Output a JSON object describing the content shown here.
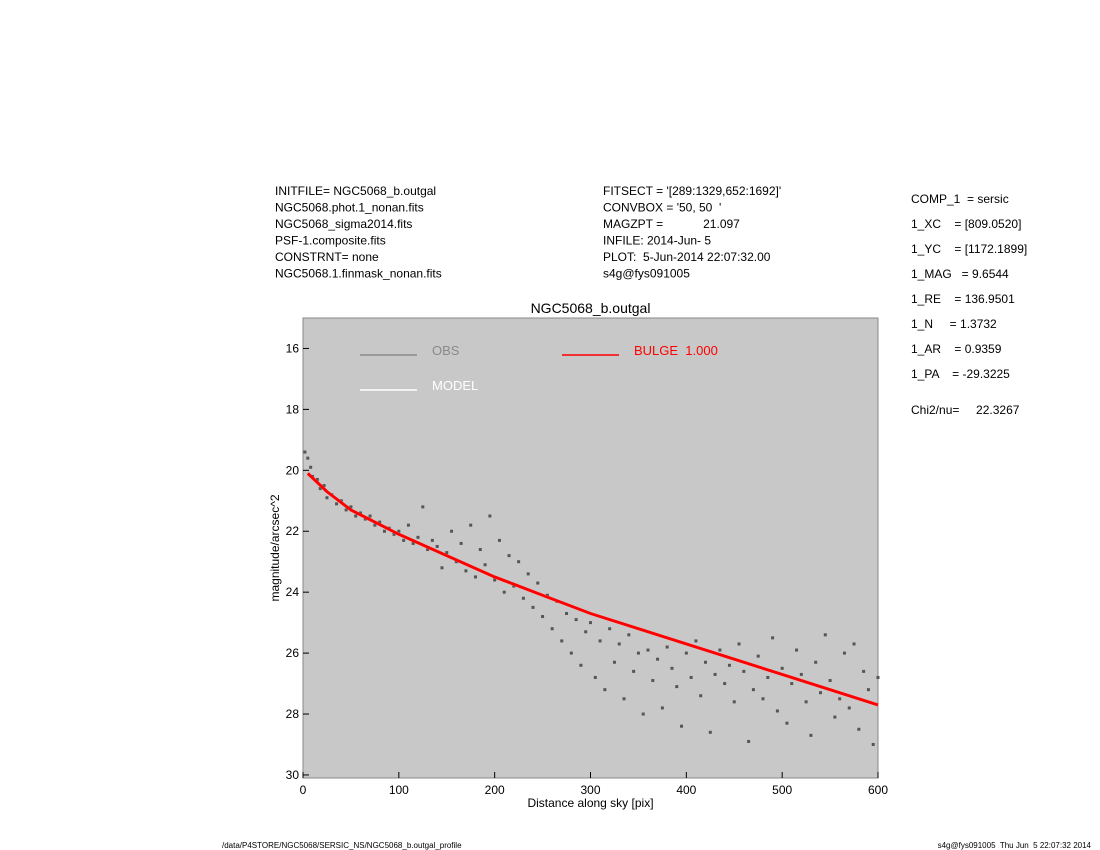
{
  "header_left": [
    "INITFILE= NGC5068_b.outgal",
    "NGC5068.phot.1_nonan.fits",
    "NGC5068_sigma2014.fits",
    "PSF-1.composite.fits",
    "CONSTRNT= none",
    "NGC5068.1.finmask_nonan.fits"
  ],
  "header_middle": [
    "FITSECT = '[289:1329,652:1692]'",
    "CONVBOX = '50, 50  '",
    "MAGZPT =            21.097",
    "INFILE: 2014-Jun- 5",
    "PLOT:  5-Jun-2014 22:07:32.00",
    "s4g@fys091005"
  ],
  "header_right": [
    "COMP_1  = sersic",
    "1_XC    = [809.0520]",
    "1_YC    = [1172.1899]",
    "1_MAG   = 9.6544",
    "1_RE    = 136.9501",
    "1_N     = 1.3732",
    "1_AR    = 0.9359",
    "1_PA    = -29.3225",
    "Chi2/nu=     22.3267"
  ],
  "footer_left": "/data/P4STORE/NGC5068/SERSIC_NS/NGC5068_b.outgal_profile",
  "footer_right": "s4g@fys091005  Thu Jun  5 22:07:32 2014",
  "chart_data": {
    "type": "scatter",
    "title": "NGC5068_b.outgal",
    "x_label": "Distance along sky [pix]",
    "y_label": "magnitude/arcsec^2",
    "xlim": [
      0,
      600
    ],
    "ylim": [
      15,
      30.1
    ],
    "y_inverted": true,
    "xticks": [
      0,
      100,
      200,
      300,
      400,
      500,
      600
    ],
    "yticks": [
      16,
      18,
      20,
      22,
      24,
      26,
      28,
      30
    ],
    "background": "#c8c8c8",
    "series": [
      {
        "name": "OBS",
        "color": "#555555",
        "legend_color": "#8a8a8a",
        "mode": "points",
        "x": [
          2,
          5,
          8,
          10,
          15,
          18,
          22,
          25,
          30,
          35,
          40,
          45,
          50,
          55,
          60,
          65,
          70,
          75,
          80,
          85,
          90,
          95,
          100,
          105,
          110,
          115,
          120,
          125,
          130,
          135,
          140,
          145,
          150,
          155,
          160,
          165,
          170,
          175,
          180,
          185,
          190,
          195,
          200,
          205,
          210,
          215,
          220,
          225,
          230,
          235,
          240,
          245,
          250,
          255,
          260,
          265,
          270,
          275,
          280,
          285,
          290,
          295,
          300,
          305,
          310,
          315,
          320,
          325,
          330,
          335,
          340,
          345,
          350,
          355,
          360,
          365,
          370,
          375,
          380,
          385,
          390,
          395,
          400,
          405,
          410,
          415,
          420,
          425,
          430,
          435,
          440,
          445,
          450,
          455,
          460,
          465,
          470,
          475,
          480,
          485,
          490,
          495,
          500,
          505,
          510,
          515,
          520,
          525,
          530,
          535,
          540,
          545,
          550,
          555,
          560,
          565,
          570,
          575,
          580,
          585,
          590,
          595,
          600
        ],
        "values": [
          19.4,
          19.6,
          19.9,
          20.2,
          20.3,
          20.6,
          20.5,
          20.9,
          20.8,
          21.1,
          21.0,
          21.3,
          21.2,
          21.5,
          21.4,
          21.6,
          21.5,
          21.8,
          21.7,
          22.0,
          21.9,
          22.1,
          22.0,
          22.3,
          21.8,
          22.4,
          22.2,
          21.2,
          22.6,
          22.3,
          22.5,
          23.2,
          22.7,
          22.0,
          23.0,
          22.4,
          23.3,
          21.8,
          23.5,
          22.6,
          23.1,
          21.5,
          23.6,
          22.3,
          24.0,
          22.8,
          23.8,
          23.0,
          24.2,
          23.4,
          24.5,
          23.7,
          24.8,
          24.1,
          25.2,
          24.3,
          25.6,
          24.7,
          26.0,
          24.9,
          26.4,
          25.3,
          25.0,
          26.8,
          25.6,
          27.2,
          25.2,
          26.3,
          25.7,
          27.5,
          25.4,
          26.6,
          26.0,
          28.0,
          25.9,
          26.9,
          26.2,
          27.8,
          25.8,
          26.5,
          27.1,
          28.4,
          26.0,
          26.8,
          25.6,
          27.4,
          26.3,
          28.6,
          26.7,
          25.9,
          27.0,
          26.4,
          27.6,
          25.7,
          26.6,
          28.9,
          27.2,
          26.1,
          27.5,
          26.8,
          25.5,
          27.9,
          26.5,
          28.3,
          27.0,
          25.9,
          26.7,
          27.6,
          28.7,
          26.3,
          27.3,
          25.4,
          26.9,
          28.1,
          27.5,
          26.0,
          27.8,
          25.7,
          28.5,
          26.6,
          27.2,
          29.0,
          26.8
        ]
      },
      {
        "name": "MODEL",
        "color": "#ffffff",
        "legend_color": "#ffffff",
        "mode": "line",
        "x": [
          5,
          25,
          50,
          100,
          150,
          200,
          250,
          300,
          350,
          400,
          450,
          500,
          550,
          600
        ],
        "values": [
          20.1,
          20.7,
          21.3,
          22.1,
          22.8,
          23.5,
          24.1,
          24.7,
          25.2,
          25.7,
          26.2,
          26.7,
          27.2,
          27.7
        ]
      },
      {
        "name": "BULGE  1.000",
        "color": "#ff0000",
        "legend_color": "#ff0000",
        "mode": "line",
        "x": [
          5,
          25,
          50,
          100,
          150,
          200,
          250,
          300,
          350,
          400,
          450,
          500,
          550,
          600
        ],
        "values": [
          20.1,
          20.7,
          21.3,
          22.1,
          22.8,
          23.5,
          24.1,
          24.7,
          25.2,
          25.7,
          26.2,
          26.7,
          27.2,
          27.7
        ]
      }
    ]
  }
}
